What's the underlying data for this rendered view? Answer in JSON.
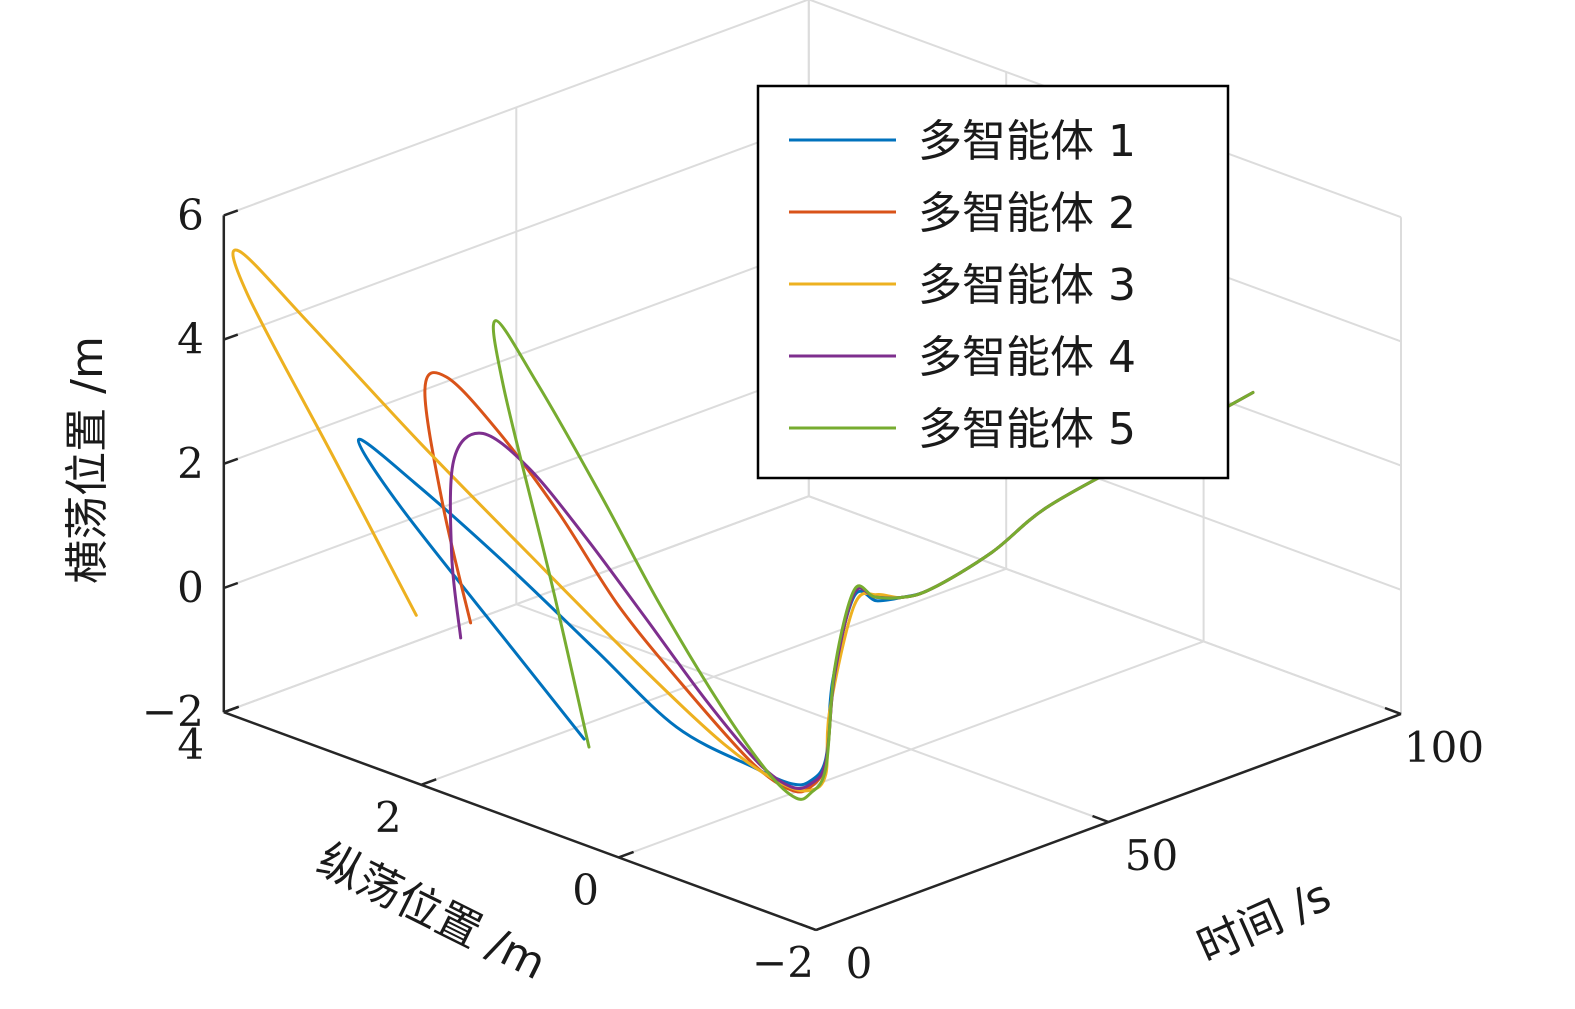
{
  "chart_data": {
    "type": "line",
    "projection": "3d",
    "xlabel": "纵荡位置 /m",
    "ylabel": "时间 /s",
    "zlabel": "横荡位置 /m",
    "xlim": [
      -2,
      4
    ],
    "ylim": [
      0,
      100
    ],
    "zlim": [
      -2,
      6
    ],
    "xticks": [
      "−2",
      "0",
      "2",
      "4"
    ],
    "yticks": [
      "0",
      "50",
      "100"
    ],
    "zticks": [
      "−2",
      "0",
      "2",
      "4",
      "6"
    ],
    "grid": true,
    "legend_position": "top-right",
    "series": [
      {
        "name": "多智能体 1",
        "color": "#0072BD",
        "x": [
          0.35,
          1.2,
          2.5,
          3.05,
          2.6,
          1.8,
          1.0,
          0.3,
          -0.3,
          -0.5,
          -0.52,
          -0.5,
          -0.45,
          -0.55,
          -0.6,
          -0.55,
          -0.5,
          -0.52,
          -0.48,
          -0.5,
          -0.5
        ],
        "y": [
          0,
          2,
          5,
          7,
          9,
          11,
          13,
          15,
          18,
          21,
          24,
          27,
          29,
          31,
          34,
          39,
          45,
          55,
          65,
          80,
          100
        ],
        "z": [
          -0.3,
          0.6,
          2.0,
          2.7,
          2.2,
          1.3,
          0.3,
          -0.6,
          -1.0,
          -1.25,
          -1.3,
          -1.05,
          0.1,
          1.45,
          1.3,
          1.15,
          1.05,
          1.3,
          1.65,
          1.95,
          2.3
        ]
      },
      {
        "name": "多智能体 2",
        "color": "#D95319",
        "x": [
          1.5,
          1.9,
          2.2,
          2.1,
          1.7,
          1.2,
          0.7,
          0.15,
          -0.3,
          -0.5,
          -0.52,
          -0.5,
          -0.47,
          -0.55,
          -0.58,
          -0.55,
          -0.5,
          -0.52,
          -0.48,
          -0.5,
          -0.5
        ],
        "y": [
          0,
          2,
          4,
          6,
          8,
          10,
          12,
          15,
          18,
          21,
          24,
          27,
          29,
          31,
          34,
          39,
          45,
          55,
          65,
          80,
          100
        ],
        "z": [
          0.9,
          2.5,
          4.1,
          4.3,
          3.6,
          2.5,
          1.2,
          0.0,
          -0.95,
          -1.35,
          -1.4,
          -1.1,
          0.2,
          1.5,
          1.35,
          1.15,
          1.05,
          1.3,
          1.65,
          1.95,
          2.3
        ]
      },
      {
        "name": "多智能体 3",
        "color": "#EDB120",
        "x": [
          2.05,
          3.0,
          4.0,
          4.2,
          3.6,
          2.6,
          1.6,
          0.7,
          0.0,
          -0.4,
          -0.52,
          -0.5,
          -0.42,
          -0.55,
          -0.6,
          -0.55,
          -0.5,
          -0.52,
          -0.48,
          -0.5,
          -0.5
        ],
        "y": [
          0,
          2,
          4,
          6,
          8,
          10,
          12,
          15,
          18,
          21,
          24,
          27,
          29,
          31,
          34,
          39,
          45,
          55,
          65,
          80,
          100
        ],
        "z": [
          0.7,
          2.6,
          4.6,
          5.1,
          4.2,
          2.8,
          1.5,
          0.2,
          -0.8,
          -1.3,
          -1.45,
          -1.3,
          -0.4,
          1.3,
          1.4,
          1.15,
          1.05,
          1.3,
          1.65,
          1.95,
          2.3
        ]
      },
      {
        "name": "多智能体 4",
        "color": "#7E2F8E",
        "x": [
          1.6,
          1.75,
          1.85,
          1.75,
          1.4,
          0.95,
          0.45,
          0.0,
          -0.35,
          -0.5,
          -0.52,
          -0.5,
          -0.47,
          -0.55,
          -0.58,
          -0.55,
          -0.5,
          -0.52,
          -0.48,
          -0.5,
          -0.5
        ],
        "y": [
          0,
          1,
          3,
          6,
          8,
          10,
          12,
          15,
          18,
          21,
          24,
          27,
          29,
          31,
          34,
          39,
          45,
          55,
          65,
          80,
          100
        ],
        "z": [
          0.6,
          1.8,
          3.2,
          3.6,
          3.2,
          2.3,
          1.2,
          0.0,
          -0.9,
          -1.3,
          -1.35,
          -1.1,
          0.2,
          1.5,
          1.35,
          1.15,
          1.05,
          1.3,
          1.65,
          1.95,
          2.3
        ]
      },
      {
        "name": "多智能体 5",
        "color": "#77AC30",
        "x": [
          0.3,
          0.8,
          1.4,
          1.6,
          1.3,
          0.8,
          0.3,
          -0.15,
          -0.45,
          -0.55,
          -0.52,
          -0.5,
          -0.47,
          -0.55,
          -0.58,
          -0.55,
          -0.5,
          -0.52,
          -0.48,
          -0.5,
          -0.5
        ],
        "y": [
          0,
          2,
          4,
          6,
          8,
          10,
          12,
          15,
          18,
          21,
          24,
          27,
          29,
          31,
          34,
          39,
          45,
          55,
          65,
          80,
          100
        ],
        "z": [
          -0.4,
          1.9,
          4.6,
          5.5,
          4.6,
          3.1,
          1.5,
          0.0,
          -1.0,
          -1.45,
          -1.5,
          -1.2,
          0.3,
          1.55,
          1.35,
          1.15,
          1.05,
          1.3,
          1.65,
          1.95,
          2.3
        ]
      }
    ]
  }
}
